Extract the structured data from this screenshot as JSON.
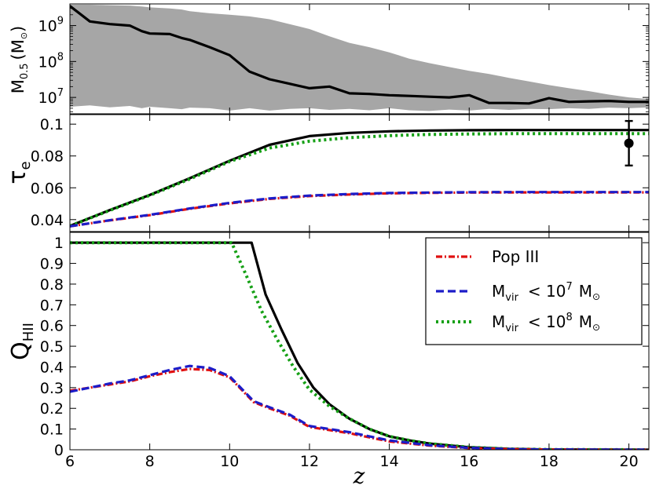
{
  "chart_data": [
    {
      "type": "area",
      "panel": "top",
      "ylabel_main": "M",
      "ylabel_sub": "0.5",
      "ylabel_unit": "(M",
      "ylabel_unit_close": ")",
      "yscale": "log",
      "xlim": [
        6,
        20.5
      ],
      "ylim": [
        3500000,
        4000000000
      ],
      "yticks": [
        {
          "value": 10000000,
          "base": "10",
          "exp": "7"
        },
        {
          "value": 100000000,
          "base": "10",
          "exp": "8"
        },
        {
          "value": 1000000000,
          "base": "10",
          "exp": "9"
        }
      ],
      "x": [
        6,
        6.5,
        7,
        7.5,
        7.8,
        8,
        8.5,
        8.8,
        9,
        9.5,
        10,
        10.5,
        11,
        11.5,
        12,
        12.5,
        13,
        13.5,
        14,
        14.5,
        15,
        15.5,
        16,
        16.5,
        17,
        17.5,
        18,
        18.5,
        19,
        19.5,
        20,
        20.5
      ],
      "median": [
        3500000000,
        1300000000,
        1100000000,
        1000000000,
        700000000,
        600000000,
        580000000,
        450000000,
        400000000,
        250000000,
        150000000,
        52000000,
        32000000,
        24000000,
        18000000,
        20000000,
        13000000,
        12500000,
        11500000,
        11000000,
        10500000,
        10000000,
        11500000,
        7000000,
        7000000,
        6800000,
        9500000,
        7500000,
        7800000,
        8000000,
        7500000,
        7500000
      ],
      "band_upper": [
        3800000000,
        3800000000,
        3700000000,
        3600000000,
        3400000000,
        3200000000,
        3000000000,
        2800000000,
        2500000000,
        2200000000,
        2000000000,
        1800000000,
        1500000000,
        1100000000,
        800000000,
        500000000,
        330000000,
        250000000,
        180000000,
        120000000,
        90000000,
        70000000,
        55000000,
        45000000,
        35000000,
        28000000,
        22000000,
        18000000,
        15000000,
        12000000,
        10000000,
        9000000
      ],
      "band_lower": [
        5500000,
        6000000,
        5300000,
        5800000,
        5000000,
        5500000,
        5000000,
        4700000,
        5200000,
        5000000,
        4300000,
        5000000,
        4300000,
        4800000,
        5000000,
        4500000,
        4800000,
        4400000,
        5000000,
        4400000,
        4200000,
        4600000,
        4300000,
        4800000,
        4500000,
        4800000,
        4700000,
        5000000,
        4800000,
        5200000,
        5000000,
        5300000
      ],
      "band_color": "#a6a6a6",
      "line_color": "#000000"
    },
    {
      "type": "line",
      "panel": "middle",
      "ylabel_main": "τ",
      "ylabel_sub": "e",
      "xlim": [
        6,
        20.5
      ],
      "ylim": [
        0.0325,
        0.106
      ],
      "yticks": [
        "0.04",
        "0.06",
        "0.08",
        "0.1"
      ],
      "x": [
        6,
        7,
        8,
        9,
        10,
        11,
        12,
        13,
        14,
        15,
        16,
        17,
        18,
        19,
        20,
        20.5
      ],
      "series": [
        {
          "key": "total",
          "color": "#000000",
          "dash": "none",
          "values": [
            0.036,
            0.046,
            0.0555,
            0.066,
            0.077,
            0.087,
            0.0925,
            0.0945,
            0.0955,
            0.096,
            0.0962,
            0.0963,
            0.0963,
            0.0963,
            0.0963,
            0.0963
          ]
        },
        {
          "key": "mvir8",
          "color": "#15a015",
          "dash": "3,4",
          "values": [
            0.036,
            0.0458,
            0.0553,
            0.0655,
            0.0765,
            0.085,
            0.0893,
            0.0915,
            0.0928,
            0.0935,
            0.0938,
            0.094,
            0.094,
            0.094,
            0.094,
            0.094
          ]
        },
        {
          "key": "pop3",
          "color": "#e01010",
          "dash": "8,3,2,3",
          "values": [
            0.0358,
            0.0395,
            0.0428,
            0.0468,
            0.0502,
            0.053,
            0.0548,
            0.0558,
            0.0565,
            0.0568,
            0.057,
            0.0571,
            0.0571,
            0.0571,
            0.0571,
            0.0571
          ]
        },
        {
          "key": "mvir7",
          "color": "#1c1cc8",
          "dash": "10,5",
          "values": [
            0.0358,
            0.0396,
            0.043,
            0.047,
            0.0505,
            0.0533,
            0.0551,
            0.0561,
            0.0567,
            0.057,
            0.0572,
            0.0573,
            0.0573,
            0.0573,
            0.0573,
            0.0573
          ]
        }
      ],
      "datapoint": {
        "x": 20,
        "y": 0.088,
        "err": 0.014
      }
    },
    {
      "type": "line",
      "panel": "bottom",
      "ylabel_main": "Q",
      "ylabel_sub": "HII",
      "xlabel": "z",
      "xlim": [
        6,
        20.5
      ],
      "ylim": [
        0,
        1.05
      ],
      "xticks": [
        "6",
        "8",
        "10",
        "12",
        "14",
        "16",
        "18",
        "20"
      ],
      "yticks": [
        "0",
        "0.1",
        "0.2",
        "0.3",
        "0.4",
        "0.5",
        "0.6",
        "0.7",
        "0.8",
        "0.9",
        "1"
      ],
      "series": [
        {
          "key": "total",
          "color": "#000000",
          "dash": "none",
          "x": [
            6,
            10.55,
            10.9,
            11.3,
            11.7,
            12.1,
            12.5,
            13,
            13.5,
            14,
            14.5,
            15,
            16,
            17,
            18,
            20.5
          ],
          "values": [
            1,
            1,
            0.75,
            0.58,
            0.42,
            0.3,
            0.22,
            0.15,
            0.1,
            0.065,
            0.045,
            0.03,
            0.012,
            0.004,
            0.001,
            0
          ]
        },
        {
          "key": "mvir8",
          "color": "#15a015",
          "dash": "3,4",
          "x": [
            6,
            10.05,
            10.4,
            10.8,
            11.2,
            11.6,
            12,
            12.5,
            13,
            13.5,
            14,
            14.5,
            15,
            16,
            17,
            18,
            20.5
          ],
          "values": [
            1,
            1,
            0.85,
            0.67,
            0.53,
            0.4,
            0.29,
            0.21,
            0.15,
            0.1,
            0.065,
            0.045,
            0.03,
            0.012,
            0.004,
            0.001,
            0
          ]
        },
        {
          "key": "pop3",
          "color": "#e01010",
          "dash": "8,3,2,3",
          "x": [
            6,
            6.5,
            7,
            7.5,
            8,
            8.5,
            9,
            9.5,
            10,
            10.3,
            10.6,
            11,
            11.5,
            12,
            12.5,
            13,
            13.5,
            14,
            15,
            16,
            17,
            18,
            20.5
          ],
          "values": [
            0.285,
            0.3,
            0.315,
            0.33,
            0.355,
            0.375,
            0.39,
            0.385,
            0.35,
            0.29,
            0.23,
            0.2,
            0.165,
            0.11,
            0.095,
            0.08,
            0.06,
            0.04,
            0.02,
            0.008,
            0.003,
            0.001,
            0
          ]
        },
        {
          "key": "mvir7",
          "color": "#1c1cc8",
          "dash": "10,5",
          "x": [
            6,
            6.5,
            7,
            7.5,
            8,
            8.5,
            9,
            9.5,
            10,
            10.3,
            10.6,
            11,
            11.5,
            12,
            12.5,
            13,
            13.5,
            14,
            15,
            16,
            17,
            18,
            20.5
          ],
          "values": [
            0.28,
            0.3,
            0.32,
            0.335,
            0.36,
            0.385,
            0.405,
            0.395,
            0.355,
            0.295,
            0.235,
            0.205,
            0.17,
            0.115,
            0.1,
            0.085,
            0.065,
            0.045,
            0.022,
            0.009,
            0.003,
            0.001,
            0
          ]
        }
      ]
    }
  ],
  "legend": {
    "placement": "top-right",
    "entries": [
      {
        "key": "pop3",
        "label": "Pop III"
      },
      {
        "key": "mvir7",
        "label_main": "M",
        "label_sub": "vir",
        "label_rest": "< 10",
        "label_exp": "7",
        "label_unit": "M"
      },
      {
        "key": "mvir8",
        "label_main": "M",
        "label_sub": "vir",
        "label_rest": "< 10",
        "label_exp": "8",
        "label_unit": "M"
      }
    ]
  }
}
